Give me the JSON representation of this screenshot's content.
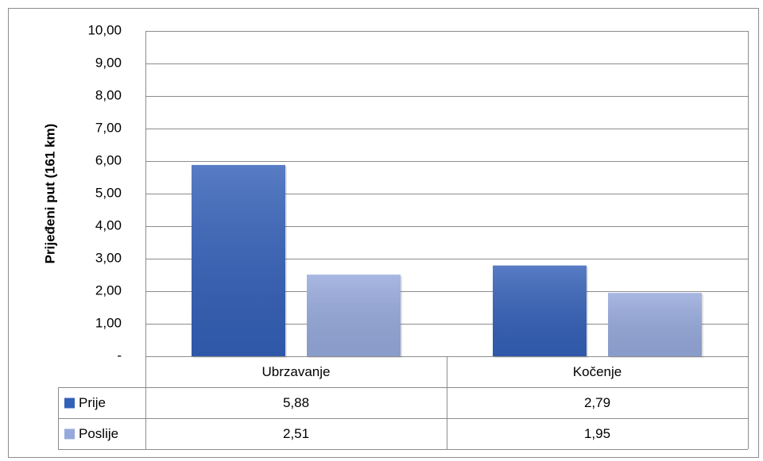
{
  "chart_data": {
    "type": "bar",
    "y_label": "Prijeđeni put (161 km)",
    "categories": [
      "Ubrzavanje",
      "Kočenje"
    ],
    "series": [
      {
        "name": "Prije",
        "color": "#3360b8",
        "values": [
          5.88,
          2.79
        ],
        "value_labels": [
          "5,88",
          "2,79"
        ]
      },
      {
        "name": "Poslije",
        "color": "#96a9dc",
        "values": [
          2.51,
          1.95
        ],
        "value_labels": [
          "2,51",
          "1,95"
        ]
      }
    ],
    "ylim": [
      0,
      10
    ],
    "yticks": [
      {
        "value": 0,
        "label": "-"
      },
      {
        "value": 1,
        "label": "1,00"
      },
      {
        "value": 2,
        "label": "2,00"
      },
      {
        "value": 3,
        "label": "3,00"
      },
      {
        "value": 4,
        "label": "4,00"
      },
      {
        "value": 5,
        "label": "5,00"
      },
      {
        "value": 6,
        "label": "6,00"
      },
      {
        "value": 7,
        "label": "7,00"
      },
      {
        "value": 8,
        "label": "8,00"
      },
      {
        "value": 9,
        "label": "9,00"
      },
      {
        "value": 10,
        "label": "10,00"
      }
    ],
    "grid": true,
    "data_table": true
  }
}
